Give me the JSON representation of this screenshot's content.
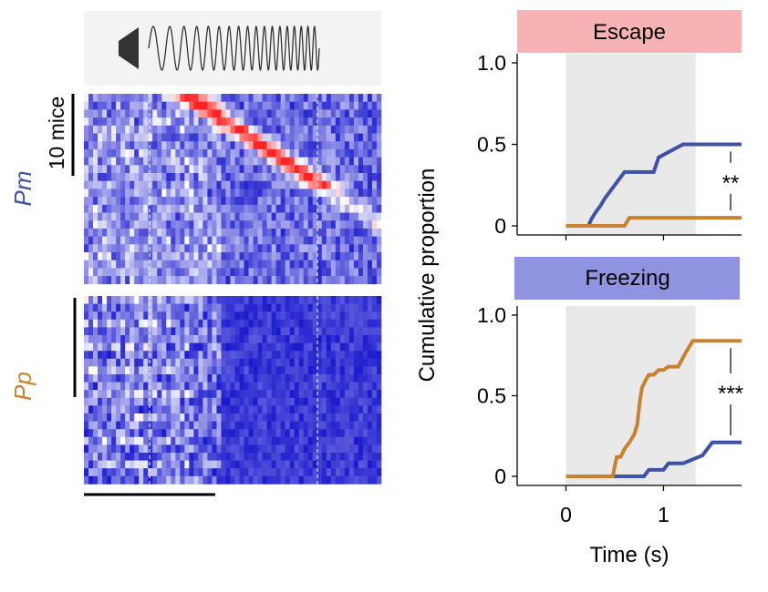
{
  "colors": {
    "pm": "#3d52a8",
    "pp": "#c8822f",
    "escape_box": "#f7b3b3",
    "freezing_box": "#8f93e0",
    "stim_shade": "#e9e9e9",
    "speaker": "#333333"
  },
  "icons": {
    "stimulus": "speaker-sweep-icon"
  },
  "heatmap": {
    "scale_label": "10 mice",
    "groups": [
      {
        "label": "Pm",
        "color": "#3d52a8"
      },
      {
        "label": "Pp",
        "color": "#c8822f"
      }
    ]
  },
  "chart_data": [
    {
      "type": "line",
      "title": "Escape",
      "ylabel": "Cumulative proportion",
      "xlabel": "Time (s)",
      "xlim": [
        -0.5,
        1.8
      ],
      "ylim": [
        0,
        1.0
      ],
      "xticks": [
        0,
        1
      ],
      "yticks": [
        0,
        0.5,
        1.0
      ],
      "ytick_labels": [
        "0",
        "0.5",
        "1.0"
      ],
      "stimulus_interval": [
        0,
        1.33
      ],
      "significance": "**",
      "series": [
        {
          "color": "#3d52a8",
          "x": [
            0,
            0.23,
            0.26,
            0.3,
            0.35,
            0.4,
            0.45,
            0.5,
            0.55,
            0.6,
            0.9,
            0.95,
            1.2,
            1.8
          ],
          "y": [
            0,
            0,
            0.04,
            0.08,
            0.12,
            0.17,
            0.21,
            0.25,
            0.29,
            0.33,
            0.33,
            0.42,
            0.5,
            0.5
          ]
        },
        {
          "color": "#c8822f",
          "x": [
            0,
            0.6,
            0.65,
            1.8
          ],
          "y": [
            0,
            0,
            0.05,
            0.05
          ]
        }
      ]
    },
    {
      "type": "line",
      "title": "Freezing",
      "ylabel": "Cumulative proportion",
      "xlabel": "Time (s)",
      "xlim": [
        -0.5,
        1.8
      ],
      "ylim": [
        0,
        1.0
      ],
      "xticks": [
        0,
        1
      ],
      "yticks": [
        0,
        0.5,
        1.0
      ],
      "ytick_labels": [
        "0",
        "0.5",
        "1.0"
      ],
      "xtick_labels": [
        "0",
        "1"
      ],
      "stimulus_interval": [
        0,
        1.33
      ],
      "significance": "***",
      "series": [
        {
          "color": "#3d52a8",
          "x": [
            0,
            0.8,
            0.85,
            1.0,
            1.05,
            1.2,
            1.4,
            1.5,
            1.8
          ],
          "y": [
            0,
            0,
            0.04,
            0.04,
            0.08,
            0.08,
            0.13,
            0.21,
            0.21
          ]
        },
        {
          "color": "#c8822f",
          "x": [
            0,
            0.48,
            0.52,
            0.56,
            0.6,
            0.65,
            0.7,
            0.73,
            0.76,
            0.78,
            0.82,
            0.85,
            0.9,
            0.95,
            1.0,
            1.05,
            1.15,
            1.22,
            1.3,
            1.35,
            1.8
          ],
          "y": [
            0,
            0,
            0.12,
            0.12,
            0.17,
            0.21,
            0.26,
            0.32,
            0.48,
            0.55,
            0.6,
            0.63,
            0.63,
            0.66,
            0.66,
            0.68,
            0.68,
            0.76,
            0.84,
            0.84,
            0.84
          ]
        }
      ]
    }
  ]
}
